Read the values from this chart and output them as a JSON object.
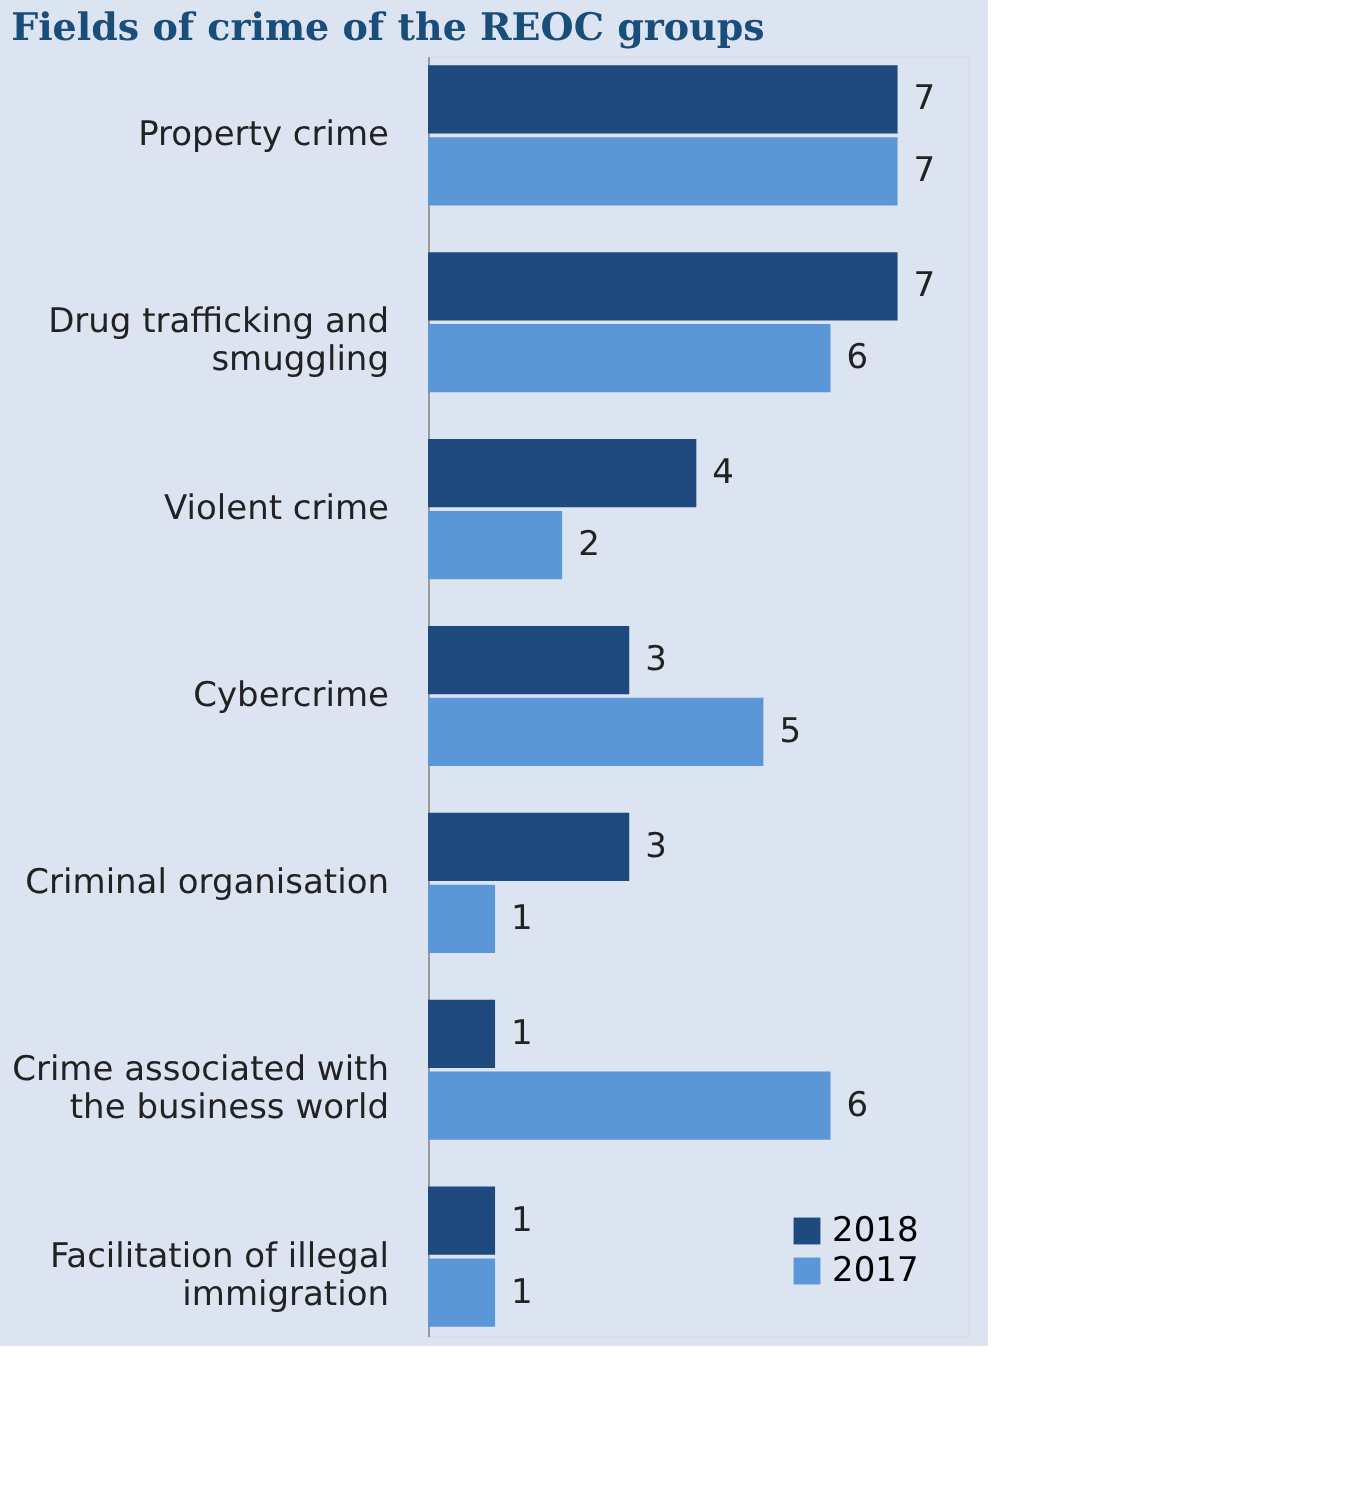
{
  "chart_data": {
    "type": "bar",
    "orientation": "horizontal",
    "title": "Fields of crime of the REOC groups",
    "categories": [
      "Property crime",
      "Drug trafficking and smuggling",
      "Violent crime",
      "Cybercrime",
      "Criminal organisation",
      "Crime associated with the business world",
      "Facilitation of illegal immigration"
    ],
    "series": [
      {
        "name": "2018",
        "color": "#1f4a7e",
        "values": [
          7,
          7,
          4,
          3,
          3,
          1,
          1
        ]
      },
      {
        "name": "2017",
        "color": "#5b96d6",
        "values": [
          7,
          6,
          2,
          5,
          1,
          6,
          1
        ]
      }
    ],
    "data_labels": true,
    "legend": "bottom right",
    "grid": false
  }
}
